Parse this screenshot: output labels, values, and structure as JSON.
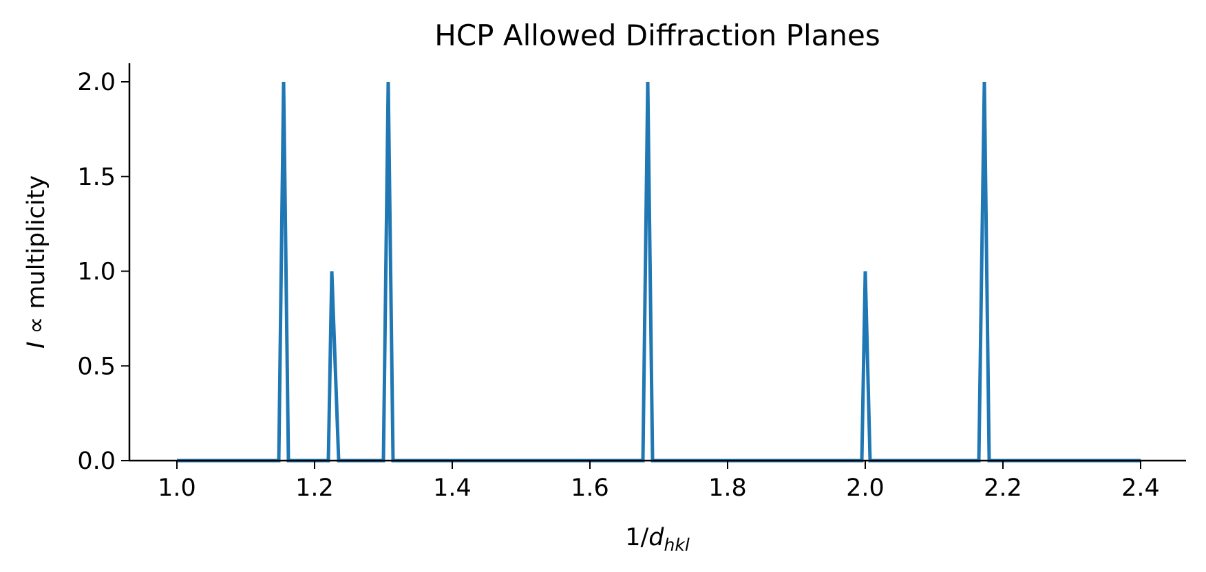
{
  "chart_data": {
    "type": "line",
    "title": "HCP Allowed Diffraction Planes",
    "xlabel": {
      "main": "1/",
      "var": "d",
      "sub": "hkl"
    },
    "ylabel": {
      "var": "I",
      "rest": " ∝ multiplicity"
    },
    "xlim": [
      0.93,
      2.47
    ],
    "ylim": [
      0,
      2.1
    ],
    "xticks": [
      1.0,
      1.2,
      1.4,
      1.6,
      1.8,
      2.0,
      2.2,
      2.4
    ],
    "xtick_labels": [
      "1.0",
      "1.2",
      "1.4",
      "1.6",
      "1.8",
      "2.0",
      "2.2",
      "2.4"
    ],
    "yticks": [
      0.0,
      0.5,
      1.0,
      1.5,
      2.0
    ],
    "ytick_labels": [
      "0.0",
      "0.5",
      "1.0",
      "1.5",
      "2.0"
    ],
    "grid": false,
    "line_color": "#1f77b4",
    "series": [
      {
        "x": [
          1.0,
          1.148,
          1.155,
          1.162,
          1.22,
          1.225,
          1.235,
          1.3,
          1.307,
          1.314,
          1.677,
          1.684,
          1.691,
          1.995,
          2.0,
          2.007,
          2.165,
          2.173,
          2.18,
          2.4
        ],
        "y": [
          0,
          0,
          2.0,
          0,
          0,
          1.0,
          0,
          0,
          2.0,
          0,
          0,
          2.0,
          0,
          0,
          1.0,
          0,
          0,
          2.0,
          0,
          0
        ]
      }
    ]
  }
}
